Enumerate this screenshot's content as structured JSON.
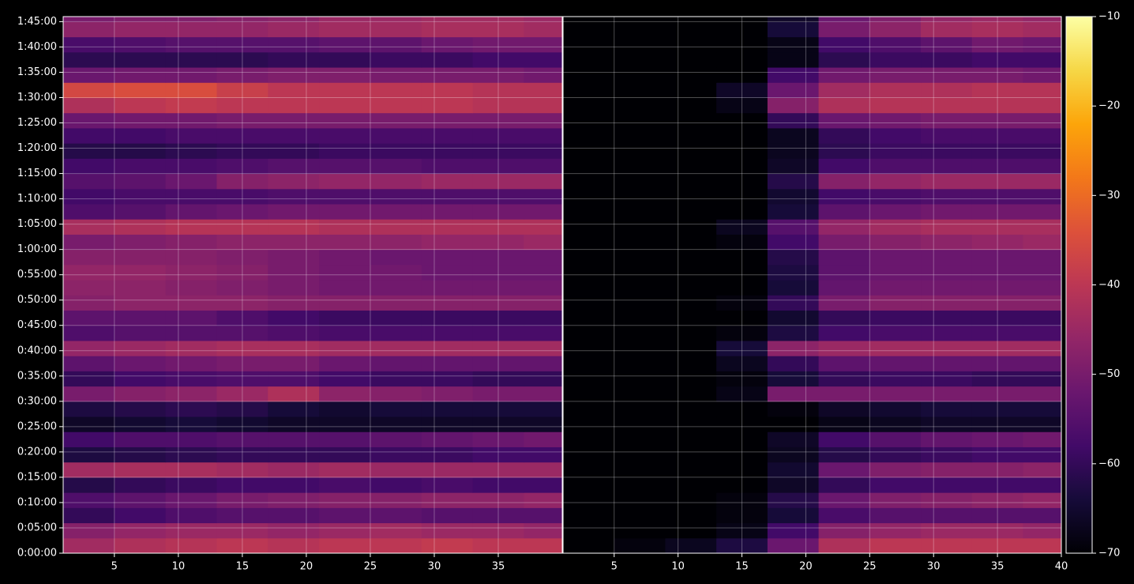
{
  "chart_data": {
    "type": "heatmap",
    "colormap": "inferno",
    "grid": true,
    "x": [
      3,
      7,
      11,
      15,
      19,
      23,
      27,
      31,
      35,
      39
    ],
    "y": [
      90,
      270,
      450,
      630,
      810,
      990,
      1170,
      1350,
      1530,
      1710,
      1890,
      2070,
      2250,
      2430,
      2610,
      2790,
      2970,
      3150,
      3330,
      3510,
      3690,
      3870,
      4050,
      4230,
      4410,
      4590,
      4770,
      4950,
      5130,
      5310,
      5490,
      5670,
      5850,
      6030,
      6210,
      6390
    ],
    "xlim": [
      1,
      40
    ],
    "ylim": [
      0,
      6360
    ],
    "yticks": [
      {
        "value": 0,
        "label": "0:00:00"
      },
      {
        "value": 300,
        "label": "0:05:00"
      },
      {
        "value": 600,
        "label": "0:10:00"
      },
      {
        "value": 900,
        "label": "0:15:00"
      },
      {
        "value": 1200,
        "label": "0:20:00"
      },
      {
        "value": 1500,
        "label": "0:25:00"
      },
      {
        "value": 1800,
        "label": "0:30:00"
      },
      {
        "value": 2100,
        "label": "0:35:00"
      },
      {
        "value": 2400,
        "label": "0:40:00"
      },
      {
        "value": 2700,
        "label": "0:45:00"
      },
      {
        "value": 3000,
        "label": "0:50:00"
      },
      {
        "value": 3300,
        "label": "0:55:00"
      },
      {
        "value": 3600,
        "label": "1:00:00"
      },
      {
        "value": 3900,
        "label": "1:05:00"
      },
      {
        "value": 4200,
        "label": "1:10:00"
      },
      {
        "value": 4500,
        "label": "1:15:00"
      },
      {
        "value": 4800,
        "label": "1:20:00"
      },
      {
        "value": 5100,
        "label": "1:25:00"
      },
      {
        "value": 5400,
        "label": "1:30:00"
      },
      {
        "value": 5700,
        "label": "1:35:00"
      },
      {
        "value": 6000,
        "label": "1:40:00"
      },
      {
        "value": 6300,
        "label": "1:45:00"
      }
    ],
    "clim": [
      -70,
      -10
    ],
    "cticks": [
      {
        "value": -70,
        "label": "−70"
      },
      {
        "value": -60,
        "label": "−60"
      },
      {
        "value": -50,
        "label": "−50"
      },
      {
        "value": -40,
        "label": "−40"
      },
      {
        "value": -30,
        "label": "−30"
      },
      {
        "value": -20,
        "label": "−20"
      },
      {
        "value": -10,
        "label": "−10"
      }
    ],
    "panels": [
      {
        "xticks": [
          5,
          10,
          15,
          20,
          25,
          30,
          35
        ],
        "values": [
          [
            -44,
            -42,
            -41,
            -40,
            -41,
            -40,
            -40,
            -39,
            -40,
            -40
          ],
          [
            -48,
            -46,
            -45,
            -45,
            -46,
            -45,
            -44,
            -45,
            -45,
            -46
          ],
          [
            -60,
            -58,
            -56,
            -55,
            -55,
            -54,
            -54,
            -55,
            -55,
            -55
          ],
          [
            -56,
            -54,
            -52,
            -50,
            -49,
            -48,
            -48,
            -47,
            -47,
            -46
          ],
          [
            -62,
            -60,
            -59,
            -58,
            -58,
            -57,
            -58,
            -57,
            -58,
            -58
          ],
          [
            -44,
            -43,
            -43,
            -44,
            -45,
            -44,
            -45,
            -45,
            -45,
            -45
          ],
          [
            -63,
            -62,
            -61,
            -60,
            -60,
            -60,
            -59,
            -59,
            -58,
            -58
          ],
          [
            -58,
            -56,
            -56,
            -55,
            -55,
            -55,
            -54,
            -53,
            -52,
            -51
          ],
          [
            -66,
            -65,
            -64,
            -65,
            -66,
            -66,
            -66,
            -66,
            -66,
            -66
          ],
          [
            -63,
            -62,
            -61,
            -62,
            -64,
            -65,
            -64,
            -64,
            -64,
            -64
          ],
          [
            -50,
            -48,
            -47,
            -45,
            -42,
            -47,
            -48,
            -49,
            -50,
            -50
          ],
          [
            -60,
            -58,
            -57,
            -56,
            -56,
            -58,
            -59,
            -59,
            -60,
            -60
          ],
          [
            -54,
            -52,
            -51,
            -50,
            -50,
            -52,
            -53,
            -53,
            -53,
            -53
          ],
          [
            -46,
            -45,
            -44,
            -43,
            -43,
            -44,
            -44,
            -44,
            -44,
            -44
          ],
          [
            -56,
            -55,
            -55,
            -55,
            -56,
            -57,
            -57,
            -57,
            -57,
            -57
          ],
          [
            -54,
            -54,
            -54,
            -56,
            -58,
            -59,
            -59,
            -59,
            -59,
            -59
          ],
          [
            -48,
            -47,
            -47,
            -47,
            -48,
            -48,
            -48,
            -48,
            -48,
            -48
          ],
          [
            -47,
            -47,
            -48,
            -49,
            -50,
            -51,
            -51,
            -51,
            -51,
            -51
          ],
          [
            -46,
            -46,
            -47,
            -48,
            -50,
            -51,
            -51,
            -52,
            -52,
            -52
          ],
          [
            -48,
            -48,
            -48,
            -49,
            -50,
            -51,
            -52,
            -52,
            -52,
            -52
          ],
          [
            -50,
            -49,
            -48,
            -47,
            -47,
            -47,
            -47,
            -46,
            -46,
            -45
          ],
          [
            -43,
            -42,
            -41,
            -41,
            -41,
            -42,
            -42,
            -42,
            -42,
            -42
          ],
          [
            -56,
            -55,
            -53,
            -52,
            -51,
            -51,
            -51,
            -51,
            -51,
            -51
          ],
          [
            -58,
            -57,
            -57,
            -57,
            -56,
            -56,
            -56,
            -56,
            -56,
            -56
          ],
          [
            -55,
            -54,
            -52,
            -48,
            -47,
            -46,
            -46,
            -45,
            -45,
            -45
          ],
          [
            -58,
            -57,
            -57,
            -56,
            -55,
            -55,
            -55,
            -56,
            -56,
            -56
          ],
          [
            -62,
            -62,
            -61,
            -60,
            -60,
            -59,
            -59,
            -59,
            -59,
            -59
          ],
          [
            -58,
            -58,
            -57,
            -57,
            -57,
            -57,
            -57,
            -57,
            -57,
            -57
          ],
          [
            -52,
            -51,
            -51,
            -50,
            -50,
            -50,
            -50,
            -50,
            -50,
            -50
          ],
          [
            -42,
            -40,
            -39,
            -40,
            -40,
            -40,
            -40,
            -40,
            -41,
            -41
          ],
          [
            -36,
            -35,
            -35,
            -38,
            -40,
            -40,
            -40,
            -40,
            -41,
            -41
          ],
          [
            -52,
            -51,
            -51,
            -50,
            -49,
            -49,
            -50,
            -50,
            -50,
            -51
          ],
          [
            -61,
            -61,
            -61,
            -61,
            -60,
            -60,
            -59,
            -59,
            -58,
            -58
          ],
          [
            -57,
            -56,
            -55,
            -55,
            -55,
            -54,
            -54,
            -52,
            -51,
            -51
          ],
          [
            -47,
            -46,
            -46,
            -46,
            -45,
            -44,
            -44,
            -43,
            -43,
            -44
          ],
          [
            -50,
            -49,
            -49,
            -48,
            -47,
            -45,
            -45,
            -44,
            -44,
            -45
          ]
        ]
      },
      {
        "xticks": [
          5,
          10,
          15,
          20,
          25,
          30,
          35,
          40
        ],
        "values": [
          [
            -70,
            -69,
            -67,
            -63,
            -52,
            -42,
            -40,
            -40,
            -40,
            -40
          ],
          [
            -70,
            -70,
            -70,
            -68,
            -58,
            -48,
            -46,
            -45,
            -45,
            -46
          ],
          [
            -70,
            -70,
            -70,
            -69,
            -64,
            -57,
            -55,
            -55,
            -55,
            -55
          ],
          [
            -70,
            -70,
            -70,
            -69,
            -62,
            -52,
            -49,
            -48,
            -47,
            -46
          ],
          [
            -70,
            -70,
            -70,
            -70,
            -66,
            -60,
            -58,
            -58,
            -58,
            -58
          ],
          [
            -70,
            -70,
            -70,
            -70,
            -65,
            -52,
            -49,
            -48,
            -48,
            -47
          ],
          [
            -70,
            -70,
            -70,
            -70,
            -67,
            -62,
            -60,
            -59,
            -58,
            -58
          ],
          [
            -70,
            -70,
            -70,
            -70,
            -66,
            -58,
            -55,
            -53,
            -52,
            -51
          ],
          [
            -70,
            -70,
            -70,
            -70,
            -70,
            -68,
            -67,
            -66,
            -66,
            -66
          ],
          [
            -70,
            -70,
            -70,
            -70,
            -69,
            -66,
            -65,
            -64,
            -64,
            -64
          ],
          [
            -70,
            -70,
            -70,
            -68,
            -50,
            -50,
            -50,
            -50,
            -50,
            -50
          ],
          [
            -70,
            -70,
            -70,
            -69,
            -64,
            -60,
            -59,
            -59,
            -60,
            -60
          ],
          [
            -70,
            -70,
            -70,
            -67,
            -60,
            -54,
            -53,
            -53,
            -53,
            -53
          ],
          [
            -70,
            -70,
            -70,
            -64,
            -47,
            -45,
            -44,
            -44,
            -44,
            -44
          ],
          [
            -70,
            -70,
            -70,
            -69,
            -63,
            -58,
            -57,
            -57,
            -57,
            -57
          ],
          [
            -70,
            -70,
            -70,
            -70,
            -65,
            -60,
            -59,
            -59,
            -59,
            -59
          ],
          [
            -70,
            -70,
            -70,
            -69,
            -60,
            -50,
            -48,
            -48,
            -48,
            -48
          ],
          [
            -70,
            -70,
            -70,
            -70,
            -64,
            -53,
            -51,
            -51,
            -51,
            -51
          ],
          [
            -70,
            -70,
            -70,
            -70,
            -63,
            -54,
            -52,
            -52,
            -52,
            -52
          ],
          [
            -70,
            -70,
            -70,
            -70,
            -62,
            -54,
            -52,
            -52,
            -52,
            -52
          ],
          [
            -70,
            -70,
            -70,
            -69,
            -58,
            -50,
            -48,
            -47,
            -46,
            -45
          ],
          [
            -70,
            -70,
            -70,
            -67,
            -55,
            -46,
            -44,
            -43,
            -43,
            -43
          ],
          [
            -70,
            -70,
            -70,
            -70,
            -64,
            -54,
            -52,
            -51,
            -51,
            -51
          ],
          [
            -70,
            -70,
            -70,
            -70,
            -65,
            -58,
            -57,
            -56,
            -56,
            -56
          ],
          [
            -70,
            -70,
            -70,
            -70,
            -62,
            -48,
            -46,
            -45,
            -45,
            -45
          ],
          [
            -70,
            -70,
            -70,
            -70,
            -66,
            -58,
            -56,
            -56,
            -56,
            -56
          ],
          [
            -70,
            -70,
            -70,
            -70,
            -67,
            -61,
            -59,
            -59,
            -59,
            -59
          ],
          [
            -70,
            -70,
            -70,
            -70,
            -67,
            -60,
            -58,
            -57,
            -57,
            -57
          ],
          [
            -70,
            -70,
            -70,
            -70,
            -60,
            -52,
            -51,
            -50,
            -50,
            -50
          ],
          [
            -70,
            -70,
            -70,
            -68,
            -48,
            -42,
            -41,
            -41,
            -41,
            -41
          ],
          [
            -70,
            -70,
            -70,
            -66,
            -52,
            -44,
            -42,
            -42,
            -41,
            -41
          ],
          [
            -70,
            -70,
            -70,
            -70,
            -58,
            -51,
            -50,
            -50,
            -50,
            -51
          ],
          [
            -70,
            -70,
            -70,
            -70,
            -68,
            -61,
            -59,
            -59,
            -58,
            -58
          ],
          [
            -70,
            -70,
            -70,
            -70,
            -68,
            -58,
            -56,
            -54,
            -51,
            -52
          ],
          [
            -70,
            -70,
            -70,
            -70,
            -64,
            -50,
            -47,
            -44,
            -43,
            -44
          ],
          [
            -70,
            -70,
            -70,
            -70,
            -66,
            -52,
            -49,
            -46,
            -45,
            -46
          ]
        ]
      }
    ]
  }
}
